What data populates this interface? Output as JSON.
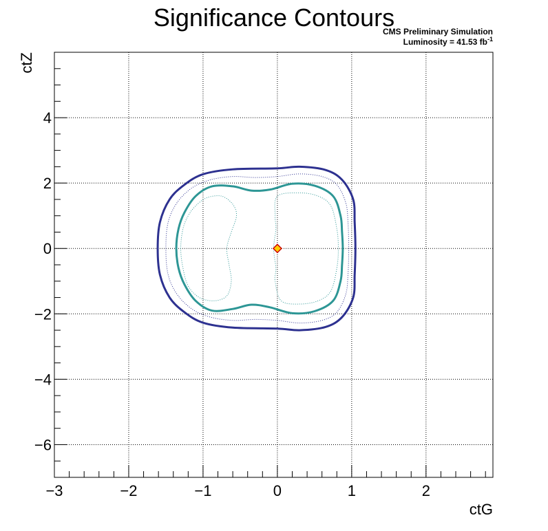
{
  "chart_data": {
    "type": "contour",
    "title": "Significance Contours",
    "annotations": {
      "line1": "CMS Preliminary Simulation",
      "line2_prefix": "Luminosity = 41.53 fb",
      "line2_sup": "-1"
    },
    "xlabel": "ctG",
    "ylabel": "ctZ",
    "xlim": [
      -3,
      2.9
    ],
    "ylim": [
      -7,
      6
    ],
    "x_ticks": [
      -3,
      -2,
      -1,
      0,
      1,
      2
    ],
    "y_ticks": [
      -6,
      -4,
      -2,
      0,
      2,
      4
    ],
    "x_tick_labels": [
      "−3",
      "−2",
      "−1",
      "0",
      "1",
      "2"
    ],
    "y_tick_labels": [
      "−6",
      "−4",
      "−2",
      "0",
      "2",
      "4"
    ],
    "grid": true,
    "best_fit_point": {
      "x": 0.0,
      "y": 0.0,
      "marker": "diamond",
      "fill": "#ffcc00",
      "stroke": "#cc0000"
    },
    "contours": [
      {
        "color": "#2d3190",
        "style": "solid",
        "width": 3,
        "points": [
          [
            -1.61,
            0
          ],
          [
            -1.58,
            0.8
          ],
          [
            -1.45,
            1.5
          ],
          [
            -1.25,
            1.95
          ],
          [
            -1,
            2.27
          ],
          [
            -0.6,
            2.42
          ],
          [
            0,
            2.45
          ],
          [
            0.3,
            2.5
          ],
          [
            0.65,
            2.4
          ],
          [
            0.87,
            2.1
          ],
          [
            1.02,
            1.5
          ],
          [
            1.04,
            0.8
          ],
          [
            1.05,
            0
          ],
          [
            1.04,
            -0.8
          ],
          [
            1.02,
            -1.5
          ],
          [
            0.87,
            -2.1
          ],
          [
            0.65,
            -2.4
          ],
          [
            0.3,
            -2.5
          ],
          [
            0,
            -2.45
          ],
          [
            -0.6,
            -2.42
          ],
          [
            -1,
            -2.27
          ],
          [
            -1.25,
            -1.95
          ],
          [
            -1.45,
            -1.5
          ],
          [
            -1.58,
            -0.8
          ]
        ]
      },
      {
        "color": "#2d3190",
        "style": "dotted",
        "width": 1,
        "points": [
          [
            -1.5,
            0
          ],
          [
            -1.47,
            0.8
          ],
          [
            -1.35,
            1.4
          ],
          [
            -1.15,
            1.85
          ],
          [
            -0.9,
            2.1
          ],
          [
            -0.6,
            2.2
          ],
          [
            -0.3,
            2.17
          ],
          [
            0,
            2.2
          ],
          [
            0.3,
            2.28
          ],
          [
            0.6,
            2.2
          ],
          [
            0.8,
            1.95
          ],
          [
            0.92,
            1.4
          ],
          [
            0.95,
            0.8
          ],
          [
            0.96,
            0
          ],
          [
            0.95,
            -0.8
          ],
          [
            0.92,
            -1.4
          ],
          [
            0.8,
            -1.95
          ],
          [
            0.6,
            -2.2
          ],
          [
            0.3,
            -2.28
          ],
          [
            0,
            -2.2
          ],
          [
            -0.3,
            -2.17
          ],
          [
            -0.6,
            -2.2
          ],
          [
            -0.9,
            -2.1
          ],
          [
            -1.15,
            -1.85
          ],
          [
            -1.35,
            -1.4
          ],
          [
            -1.47,
            -0.8
          ]
        ]
      },
      {
        "color": "#2d9695",
        "style": "solid",
        "width": 3,
        "points": [
          [
            -1.36,
            0
          ],
          [
            -1.33,
            0.6
          ],
          [
            -1.25,
            1.1
          ],
          [
            -1.1,
            1.6
          ],
          [
            -0.88,
            1.9
          ],
          [
            -0.6,
            1.9
          ],
          [
            -0.35,
            1.77
          ],
          [
            -0.1,
            1.8
          ],
          [
            0.2,
            1.98
          ],
          [
            0.5,
            1.92
          ],
          [
            0.75,
            1.6
          ],
          [
            0.85,
            1.0
          ],
          [
            0.87,
            0.5
          ],
          [
            0.88,
            0
          ],
          [
            0.87,
            -0.5
          ],
          [
            0.85,
            -1.0
          ],
          [
            0.75,
            -1.6
          ],
          [
            0.5,
            -1.92
          ],
          [
            0.2,
            -1.98
          ],
          [
            -0.1,
            -1.8
          ],
          [
            -0.35,
            -1.72
          ],
          [
            -0.6,
            -1.85
          ],
          [
            -0.88,
            -1.9
          ],
          [
            -1.1,
            -1.6
          ],
          [
            -1.25,
            -1.1
          ],
          [
            -1.33,
            -0.6
          ]
        ]
      },
      {
        "color": "#2d9695",
        "style": "dotted",
        "width": 1,
        "points": [
          [
            -1.3,
            0
          ],
          [
            -1.27,
            0.6
          ],
          [
            -1.2,
            1.0
          ],
          [
            -1.1,
            1.3
          ],
          [
            -0.95,
            1.55
          ],
          [
            -0.75,
            1.6
          ],
          [
            -0.6,
            1.35
          ],
          [
            -0.55,
            1.0
          ],
          [
            -0.62,
            0.5
          ],
          [
            -0.68,
            0
          ],
          [
            -0.65,
            -0.5
          ],
          [
            -0.62,
            -1.0
          ],
          [
            -0.68,
            -1.45
          ],
          [
            -0.85,
            -1.6
          ],
          [
            -1.05,
            -1.5
          ],
          [
            -1.2,
            -1.15
          ],
          [
            -1.27,
            -0.6
          ]
        ]
      },
      {
        "color": "#2d9695",
        "style": "dotted",
        "width": 1,
        "points": [
          [
            -0.05,
            0
          ],
          [
            -0.02,
            0.6
          ],
          [
            -0.03,
            1.0
          ],
          [
            0,
            1.6
          ],
          [
            0.3,
            1.7
          ],
          [
            0.55,
            1.6
          ],
          [
            0.72,
            1.3
          ],
          [
            0.8,
            0.6
          ],
          [
            0.82,
            0
          ],
          [
            0.8,
            -0.6
          ],
          [
            0.72,
            -1.3
          ],
          [
            0.55,
            -1.6
          ],
          [
            0.3,
            -1.7
          ],
          [
            0.05,
            -1.6
          ],
          [
            -0.03,
            -1.0
          ],
          [
            -0.02,
            -0.6
          ]
        ]
      }
    ]
  }
}
